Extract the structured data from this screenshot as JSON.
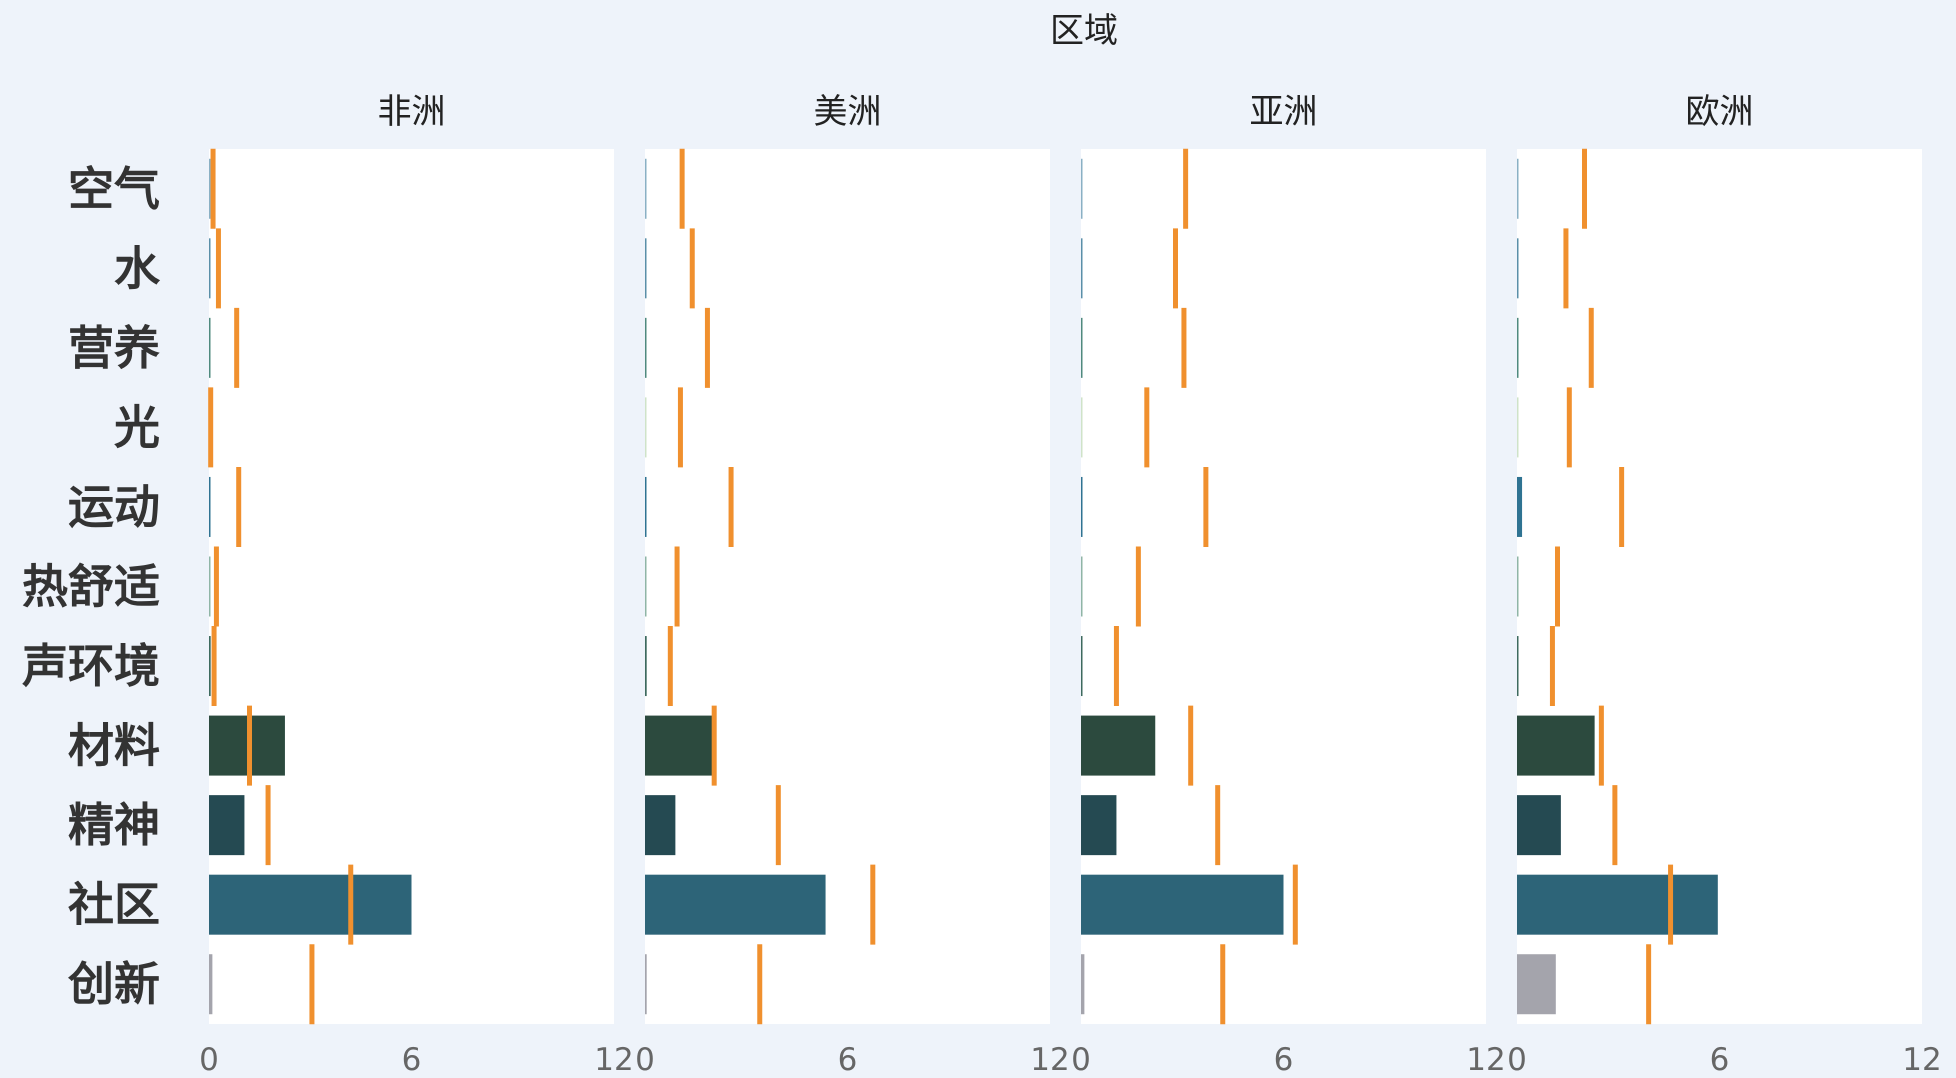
{
  "chart_data": {
    "type": "bar",
    "title": "区域",
    "categories": [
      "空气",
      "水",
      "营养",
      "光",
      "运动",
      "热舒适",
      "声环境",
      "材料",
      "精神",
      "社区",
      "创新"
    ],
    "xlim": [
      0,
      12
    ],
    "xticks": [
      0,
      6,
      12
    ],
    "colors": {
      "bars": [
        "#8ab0c4",
        "#5a8fa8",
        "#4f8a7e",
        "#cfe3c8",
        "#2f7392",
        "#8fb5a6",
        "#3d6a5e",
        "#2c4a3e",
        "#254a52",
        "#2d6478",
        "#a4a4ac"
      ],
      "target_marker": "#f0902e",
      "panel_bg": "#ffffff",
      "page_bg": "#eef3fa"
    },
    "panels": [
      {
        "name": "非洲",
        "values": [
          0.03,
          0.03,
          0.03,
          0.02,
          0.03,
          0.02,
          0.05,
          2.25,
          1.05,
          6.0,
          0.1
        ],
        "targets": [
          0.12,
          0.28,
          0.82,
          0.05,
          0.88,
          0.22,
          0.15,
          1.2,
          1.75,
          4.2,
          3.05
        ]
      },
      {
        "name": "美洲",
        "values": [
          0.03,
          0.04,
          0.03,
          0.02,
          0.04,
          0.02,
          0.05,
          2.0,
          0.9,
          5.35,
          0.05
        ],
        "targets": [
          1.1,
          1.4,
          1.85,
          1.05,
          2.55,
          0.95,
          0.75,
          2.05,
          3.95,
          6.75,
          3.4
        ]
      },
      {
        "name": "亚洲",
        "values": [
          0.03,
          0.04,
          0.03,
          0.02,
          0.04,
          0.02,
          0.04,
          2.2,
          1.05,
          6.0,
          0.1
        ],
        "targets": [
          3.1,
          2.8,
          3.05,
          1.95,
          3.7,
          1.7,
          1.05,
          3.25,
          4.05,
          6.35,
          4.2
        ]
      },
      {
        "name": "欧洲",
        "values": [
          0.03,
          0.04,
          0.03,
          0.02,
          0.15,
          0.02,
          0.04,
          2.3,
          1.3,
          5.95,
          1.15
        ],
        "targets": [
          2.0,
          1.45,
          2.2,
          1.55,
          3.1,
          1.2,
          1.05,
          2.5,
          2.9,
          4.55,
          3.9
        ]
      }
    ]
  }
}
